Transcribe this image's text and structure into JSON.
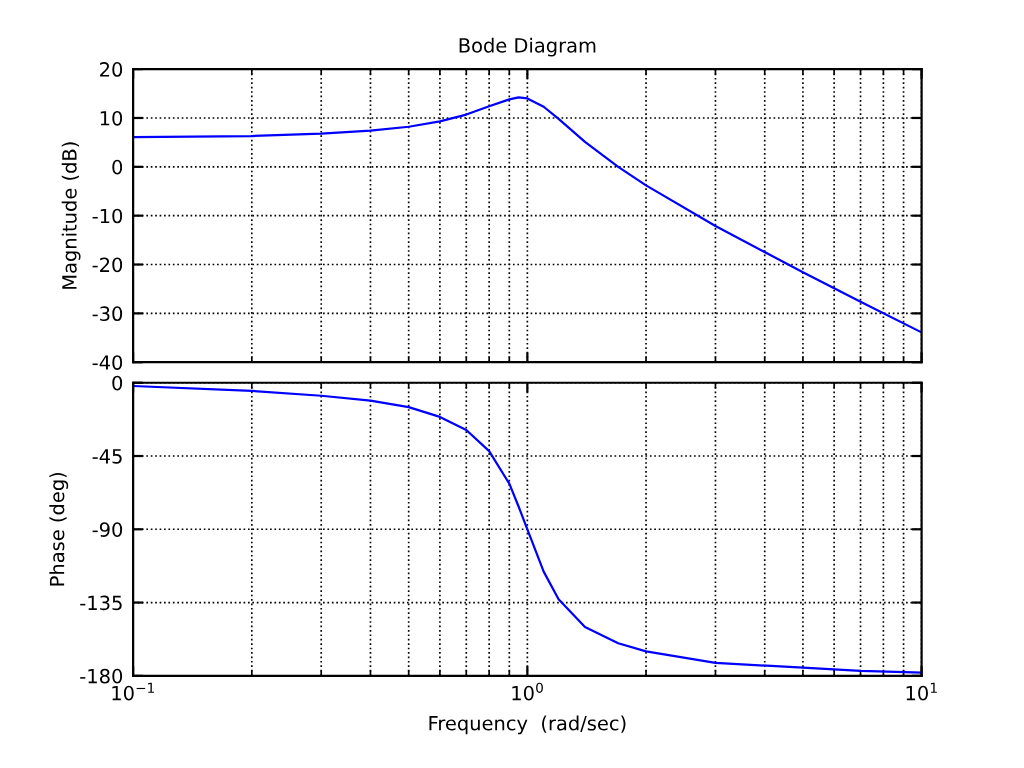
{
  "chart_data": [
    {
      "type": "line",
      "title": "Bode Diagram",
      "ylabel": "Magnitude (dB)",
      "x": [
        0.1,
        0.2,
        0.3,
        0.4,
        0.5,
        0.6,
        0.7,
        0.8,
        0.9,
        0.95,
        1.0,
        1.1,
        1.2,
        1.4,
        1.7,
        2,
        3,
        5,
        7,
        10
      ],
      "series": [
        {
          "color": "#0000ff",
          "values": [
            6.1,
            6.3,
            6.8,
            7.4,
            8.2,
            9.3,
            10.7,
            12.4,
            13.8,
            14.2,
            14.0,
            12.3,
            9.8,
            5.1,
            0.0,
            -3.8,
            -12.1,
            -21.6,
            -27.6,
            -33.9
          ]
        }
      ],
      "log": "x",
      "xlim": [
        0.1,
        10
      ],
      "ylim": [
        -40,
        20
      ],
      "yticks": [
        -40,
        -30,
        -20,
        -10,
        0,
        10,
        20
      ],
      "grid": true,
      "tick_labels": "y",
      "marker": "none",
      "line_style": "solid"
    },
    {
      "type": "line",
      "ylabel": "Phase (deg)",
      "xlabel": "Frequency  (rad/sec)",
      "x": [
        0.1,
        0.2,
        0.3,
        0.4,
        0.5,
        0.6,
        0.7,
        0.8,
        0.9,
        0.95,
        1.0,
        1.1,
        1.2,
        1.4,
        1.7,
        2,
        3,
        5,
        7,
        10
      ],
      "series": [
        {
          "color": "#0000ff",
          "values": [
            -2,
            -5,
            -8,
            -11,
            -15,
            -21,
            -29,
            -42,
            -62,
            -76,
            -90,
            -116,
            -133,
            -150,
            -160,
            -165,
            -172,
            -175,
            -177,
            -178
          ]
        }
      ],
      "log": "x",
      "xlim": [
        0.1,
        10
      ],
      "xticks": [
        {
          "value": 0.1,
          "label": "10$^{−1}$"
        },
        {
          "value": 1,
          "label": "10$^{0}$"
        },
        {
          "value": 10,
          "label": "10$^{1}$"
        }
      ],
      "ylim": [
        -180,
        0
      ],
      "yticks": [
        -180,
        -135,
        -90,
        -45,
        0
      ],
      "grid": true,
      "marker": "none",
      "line_style": "solid"
    }
  ]
}
